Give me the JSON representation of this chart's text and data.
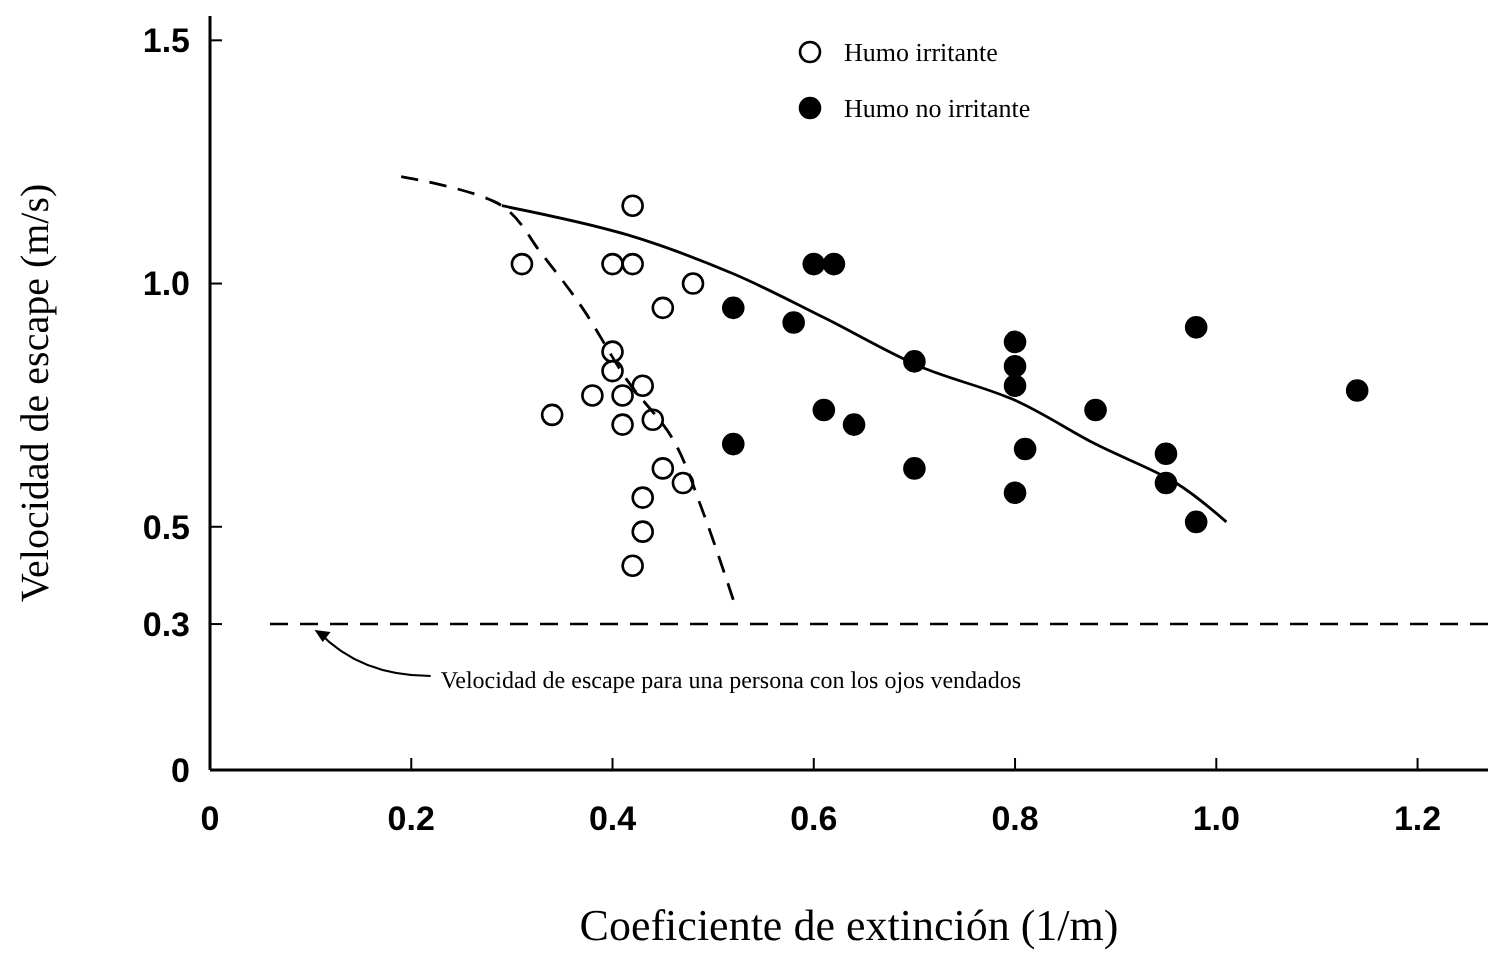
{
  "chart_data": {
    "type": "scatter",
    "xlabel": "Coeficiente de extinción (1/m)",
    "ylabel": "Velocidad de escape (m/s)",
    "xlim": [
      0,
      1.27
    ],
    "ylim": [
      0,
      1.55
    ],
    "xticks": [
      0,
      0.2,
      0.4,
      0.6,
      0.8,
      {
        "value": 1,
        "label": "1.0"
      },
      1.2
    ],
    "yticks": [
      0,
      0.3,
      0.5,
      {
        "value": 1,
        "label": "1.0"
      },
      1.5
    ],
    "grid": false,
    "legend": "top",
    "marker": "circle",
    "series": [
      {
        "name": "Humo irritante",
        "color": "#000000",
        "x": [
          0.42,
          0.31,
          0.4,
          0.42,
          0.48,
          0.45,
          0.4,
          0.4,
          0.38,
          0.41,
          0.43,
          0.34,
          0.41,
          0.44,
          0.45,
          0.47,
          0.43,
          0.43,
          0.42
        ],
        "values": [
          1.16,
          1.04,
          1.04,
          1.04,
          1.0,
          0.95,
          0.86,
          0.82,
          0.77,
          0.77,
          0.79,
          0.73,
          0.71,
          0.72,
          0.62,
          0.59,
          0.56,
          0.49,
          0.42
        ]
      },
      {
        "name": "Humo no irritante",
        "color": "#000000",
        "x": [
          0.52,
          0.6,
          0.62,
          0.58,
          0.7,
          0.8,
          0.8,
          0.8,
          0.88,
          0.98,
          1.14,
          0.61,
          0.64,
          0.52,
          0.7,
          0.81,
          0.8,
          0.95,
          0.95,
          0.98
        ],
        "values": [
          0.95,
          1.04,
          1.04,
          0.92,
          0.84,
          0.88,
          0.83,
          0.79,
          0.74,
          0.91,
          0.78,
          0.74,
          0.71,
          0.67,
          0.62,
          0.66,
          0.57,
          0.65,
          0.59,
          0.51
        ]
      },
      {
        "type": "line",
        "line_style": "solid",
        "marker": "none",
        "color": "#000000",
        "x": [
          0.29,
          0.415,
          0.52,
          0.61,
          0.705,
          0.8,
          0.88,
          0.96,
          1.01
        ],
        "values": [
          1.16,
          1.1,
          1.02,
          0.93,
          0.83,
          0.76,
          0.67,
          0.59,
          0.51
        ]
      },
      {
        "type": "line",
        "line_style": "dashed",
        "marker": "none",
        "color": "#000000",
        "x": [
          0.19,
          0.29,
          0.33,
          0.37,
          0.415,
          0.46,
          0.49,
          0.52
        ],
        "values": [
          1.22,
          1.16,
          1.06,
          0.95,
          0.8,
          0.68,
          0.53,
          0.35
        ]
      }
    ],
    "ref_lines": [
      {
        "axis": "y",
        "value": 0.3,
        "line_style": "dashed",
        "color": "#000000"
      }
    ],
    "annotations": [
      {
        "text": "Velocidad de escape para una persona con los ojos vendados",
        "x": 0.1,
        "y": 0.3
      }
    ]
  }
}
